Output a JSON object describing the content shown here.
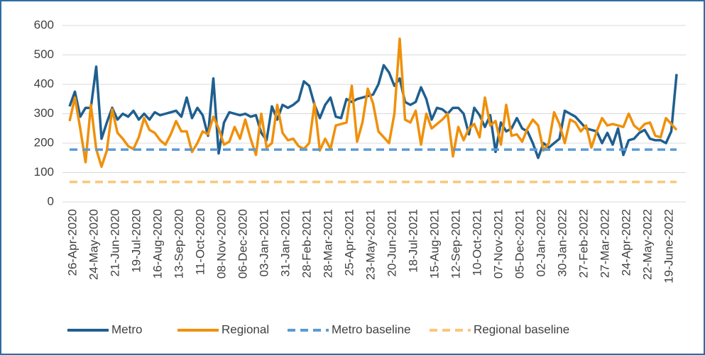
{
  "chart_data": {
    "type": "line",
    "categories": [
      "26-Apr-2020",
      null,
      null,
      null,
      "24-May-2020",
      null,
      null,
      null,
      "21-Jun-2020",
      null,
      null,
      null,
      "19-Jul-2020",
      null,
      null,
      null,
      "16-Aug-2020",
      null,
      null,
      null,
      "13-Sep-2020",
      null,
      null,
      null,
      "11-Oct-2020",
      null,
      null,
      null,
      "08-Nov-2020",
      null,
      null,
      null,
      "06-Dec-2020",
      null,
      null,
      null,
      "03-Jan-2021",
      null,
      null,
      null,
      "31-Jan-2021",
      null,
      null,
      null,
      "28-Feb-2021",
      null,
      null,
      null,
      "28-Mar-2021",
      null,
      null,
      null,
      "25-Apr-2021",
      null,
      null,
      null,
      "23-May-2021",
      null,
      null,
      null,
      "20-Jun-2021",
      null,
      null,
      null,
      "18-Jul-2021",
      null,
      null,
      null,
      "15-Aug-2021",
      null,
      null,
      null,
      "12-Sep-2021",
      null,
      null,
      null,
      "10-Oct-2021",
      null,
      null,
      null,
      "07-Nov-2021",
      null,
      null,
      null,
      "05-Dec-2021",
      null,
      null,
      null,
      "02-Jan-2022",
      null,
      null,
      null,
      "30-Jan-2022",
      null,
      null,
      null,
      "27-Feb-2022",
      null,
      null,
      null,
      "27-Mar-2022",
      null,
      null,
      null,
      "24-Apr-2022",
      null,
      null,
      null,
      "22-May-2022",
      null,
      null,
      null,
      "19-June-2022",
      null,
      null
    ],
    "series": [
      {
        "name": "Metro",
        "color": "#1f5f8f",
        "values": [
          325,
          375,
          290,
          320,
          320,
          460,
          215,
          270,
          320,
          280,
          300,
          290,
          310,
          280,
          300,
          280,
          305,
          295,
          300,
          305,
          310,
          290,
          355,
          285,
          320,
          295,
          225,
          420,
          165,
          270,
          305,
          300,
          295,
          300,
          290,
          295,
          235,
          210,
          325,
          280,
          330,
          320,
          330,
          345,
          410,
          395,
          330,
          285,
          330,
          355,
          290,
          285,
          350,
          340,
          350,
          355,
          360,
          365,
          400,
          465,
          440,
          395,
          420,
          340,
          330,
          340,
          390,
          350,
          280,
          320,
          315,
          300,
          320,
          320,
          300,
          230,
          320,
          295,
          255,
          295,
          170,
          270,
          240,
          250,
          285,
          250,
          240,
          200,
          150,
          200,
          185,
          200,
          215,
          310,
          300,
          290,
          270,
          250,
          245,
          240,
          200,
          235,
          195,
          250,
          160,
          210,
          215,
          235,
          245,
          215,
          210,
          210,
          200,
          240,
          435
        ]
      },
      {
        "name": "Regional",
        "color": "#f0900a",
        "values": [
          275,
          355,
          250,
          135,
          330,
          180,
          120,
          175,
          315,
          235,
          215,
          190,
          180,
          220,
          285,
          245,
          235,
          210,
          195,
          230,
          275,
          240,
          240,
          170,
          200,
          240,
          230,
          290,
          250,
          195,
          205,
          255,
          215,
          280,
          215,
          160,
          300,
          185,
          200,
          330,
          235,
          210,
          215,
          190,
          180,
          200,
          335,
          175,
          215,
          180,
          260,
          265,
          270,
          395,
          205,
          270,
          385,
          335,
          240,
          220,
          200,
          300,
          555,
          280,
          270,
          310,
          195,
          300,
          250,
          265,
          280,
          300,
          155,
          255,
          210,
          250,
          265,
          220,
          355,
          260,
          275,
          195,
          330,
          225,
          230,
          205,
          250,
          280,
          260,
          175,
          200,
          305,
          265,
          200,
          280,
          270,
          240,
          260,
          185,
          240,
          285,
          260,
          265,
          260,
          255,
          300,
          260,
          245,
          265,
          270,
          225,
          220,
          285,
          265,
          245
        ]
      },
      {
        "name": "Metro baseline",
        "color": "#5b9bd5",
        "dashed": true,
        "value": 178
      },
      {
        "name": "Regional baseline",
        "color": "#fac77a",
        "dashed": true,
        "value": 68
      }
    ],
    "ylim": [
      0,
      600
    ],
    "yticks": [
      0,
      100,
      200,
      300,
      400,
      500,
      600
    ],
    "grid": true,
    "legend": "bottom"
  }
}
